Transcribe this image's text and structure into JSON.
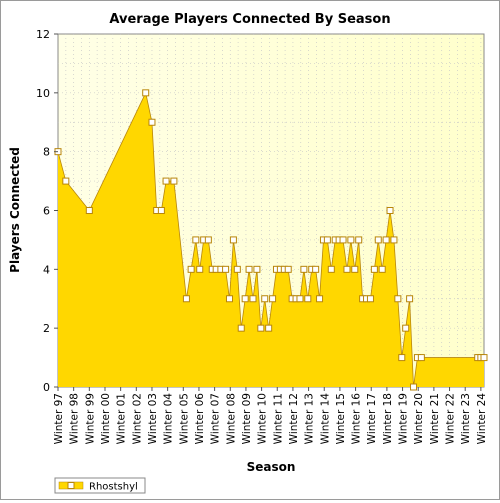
{
  "chart_data": {
    "type": "area",
    "title": "Average Players Connected By Season",
    "xlabel": "Season",
    "ylabel": "Players Connected",
    "ylim": [
      0,
      12
    ],
    "yticks": [
      0,
      2,
      4,
      6,
      8,
      10,
      12
    ],
    "grid": true,
    "legend": "bottom-left",
    "x_tick_labels": [
      "Winter 97",
      "Winter 98",
      "Winter 99",
      "Winter 00",
      "Winter 01",
      "Winter 02",
      "Winter 03",
      "Winter 04",
      "Winter 05",
      "Winter 06",
      "Winter 07",
      "Winter 08",
      "Winter 09",
      "Winter 10",
      "Winter 11",
      "Winter 12",
      "Winter 13",
      "Winter 14",
      "Winter 15",
      "Winter 16",
      "Winter 17",
      "Winter 18",
      "Winter 19",
      "Winter 20",
      "Winter 21",
      "Winter 22",
      "Winter 23",
      "Winter 24"
    ],
    "series": [
      {
        "name": "Rhostshyl",
        "color": "#ffd700",
        "marker_stroke": "#b8860b",
        "points": [
          {
            "x": 0.0,
            "y": 8
          },
          {
            "x": 0.5,
            "y": 7
          },
          {
            "x": 2.0,
            "y": 6
          },
          {
            "x": 5.6,
            "y": 10
          },
          {
            "x": 6.0,
            "y": 9
          },
          {
            "x": 6.3,
            "y": 6
          },
          {
            "x": 6.6,
            "y": 6
          },
          {
            "x": 6.9,
            "y": 7
          },
          {
            "x": 7.4,
            "y": 7
          },
          {
            "x": 8.2,
            "y": 3
          },
          {
            "x": 8.5,
            "y": 4
          },
          {
            "x": 8.8,
            "y": 5
          },
          {
            "x": 9.05,
            "y": 4
          },
          {
            "x": 9.3,
            "y": 5
          },
          {
            "x": 9.6,
            "y": 5
          },
          {
            "x": 9.85,
            "y": 4
          },
          {
            "x": 10.1,
            "y": 4
          },
          {
            "x": 10.4,
            "y": 4
          },
          {
            "x": 10.7,
            "y": 4
          },
          {
            "x": 10.95,
            "y": 3
          },
          {
            "x": 11.2,
            "y": 5
          },
          {
            "x": 11.45,
            "y": 4
          },
          {
            "x": 11.7,
            "y": 2
          },
          {
            "x": 11.95,
            "y": 3
          },
          {
            "x": 12.2,
            "y": 4
          },
          {
            "x": 12.45,
            "y": 3
          },
          {
            "x": 12.7,
            "y": 4
          },
          {
            "x": 12.95,
            "y": 2
          },
          {
            "x": 13.2,
            "y": 3
          },
          {
            "x": 13.45,
            "y": 2
          },
          {
            "x": 13.7,
            "y": 3
          },
          {
            "x": 13.95,
            "y": 4
          },
          {
            "x": 14.2,
            "y": 4
          },
          {
            "x": 14.45,
            "y": 4
          },
          {
            "x": 14.7,
            "y": 4
          },
          {
            "x": 14.95,
            "y": 3
          },
          {
            "x": 15.2,
            "y": 3
          },
          {
            "x": 15.45,
            "y": 3
          },
          {
            "x": 15.7,
            "y": 4
          },
          {
            "x": 15.95,
            "y": 3
          },
          {
            "x": 16.2,
            "y": 4
          },
          {
            "x": 16.45,
            "y": 4
          },
          {
            "x": 16.7,
            "y": 3
          },
          {
            "x": 16.95,
            "y": 5
          },
          {
            "x": 17.2,
            "y": 5
          },
          {
            "x": 17.45,
            "y": 4
          },
          {
            "x": 17.7,
            "y": 5
          },
          {
            "x": 17.95,
            "y": 5
          },
          {
            "x": 18.2,
            "y": 5
          },
          {
            "x": 18.45,
            "y": 4
          },
          {
            "x": 18.7,
            "y": 5
          },
          {
            "x": 18.95,
            "y": 4
          },
          {
            "x": 19.2,
            "y": 5
          },
          {
            "x": 19.45,
            "y": 3
          },
          {
            "x": 19.7,
            "y": 3
          },
          {
            "x": 19.95,
            "y": 3
          },
          {
            "x": 20.2,
            "y": 4
          },
          {
            "x": 20.45,
            "y": 5
          },
          {
            "x": 20.7,
            "y": 4
          },
          {
            "x": 20.95,
            "y": 5
          },
          {
            "x": 21.2,
            "y": 6
          },
          {
            "x": 21.45,
            "y": 5
          },
          {
            "x": 21.7,
            "y": 3
          },
          {
            "x": 21.95,
            "y": 1
          },
          {
            "x": 22.2,
            "y": 2
          },
          {
            "x": 22.45,
            "y": 3
          },
          {
            "x": 22.7,
            "y": 0
          },
          {
            "x": 22.95,
            "y": 1
          },
          {
            "x": 23.2,
            "y": 1
          },
          {
            "x": 26.8,
            "y": 1
          },
          {
            "x": 27.0,
            "y": 1
          },
          {
            "x": 27.2,
            "y": 1
          }
        ],
        "hollow_markers_x": [
          0.0,
          0.5,
          2.0,
          5.6,
          6.0,
          6.3,
          6.6,
          6.9,
          7.4,
          8.2,
          8.5,
          8.8,
          9.05,
          9.3,
          9.6,
          9.85,
          10.1,
          10.4,
          10.7,
          10.95,
          11.2,
          11.45,
          11.7,
          11.95,
          12.2,
          12.45,
          12.7,
          12.95,
          13.2,
          13.45,
          13.7,
          13.95,
          14.2,
          14.45,
          14.7,
          14.95,
          15.2,
          15.45,
          15.7,
          15.95,
          16.2,
          16.45,
          16.7,
          16.95,
          17.2,
          17.45,
          17.7,
          17.95,
          18.2,
          18.45,
          18.7,
          18.95,
          19.2,
          19.45,
          19.7,
          19.95,
          20.2,
          20.45,
          20.7,
          20.95,
          21.2,
          21.45,
          21.7,
          21.95,
          22.2,
          22.45,
          22.7,
          22.95,
          23.2,
          26.8,
          27.0,
          27.2
        ]
      }
    ]
  }
}
